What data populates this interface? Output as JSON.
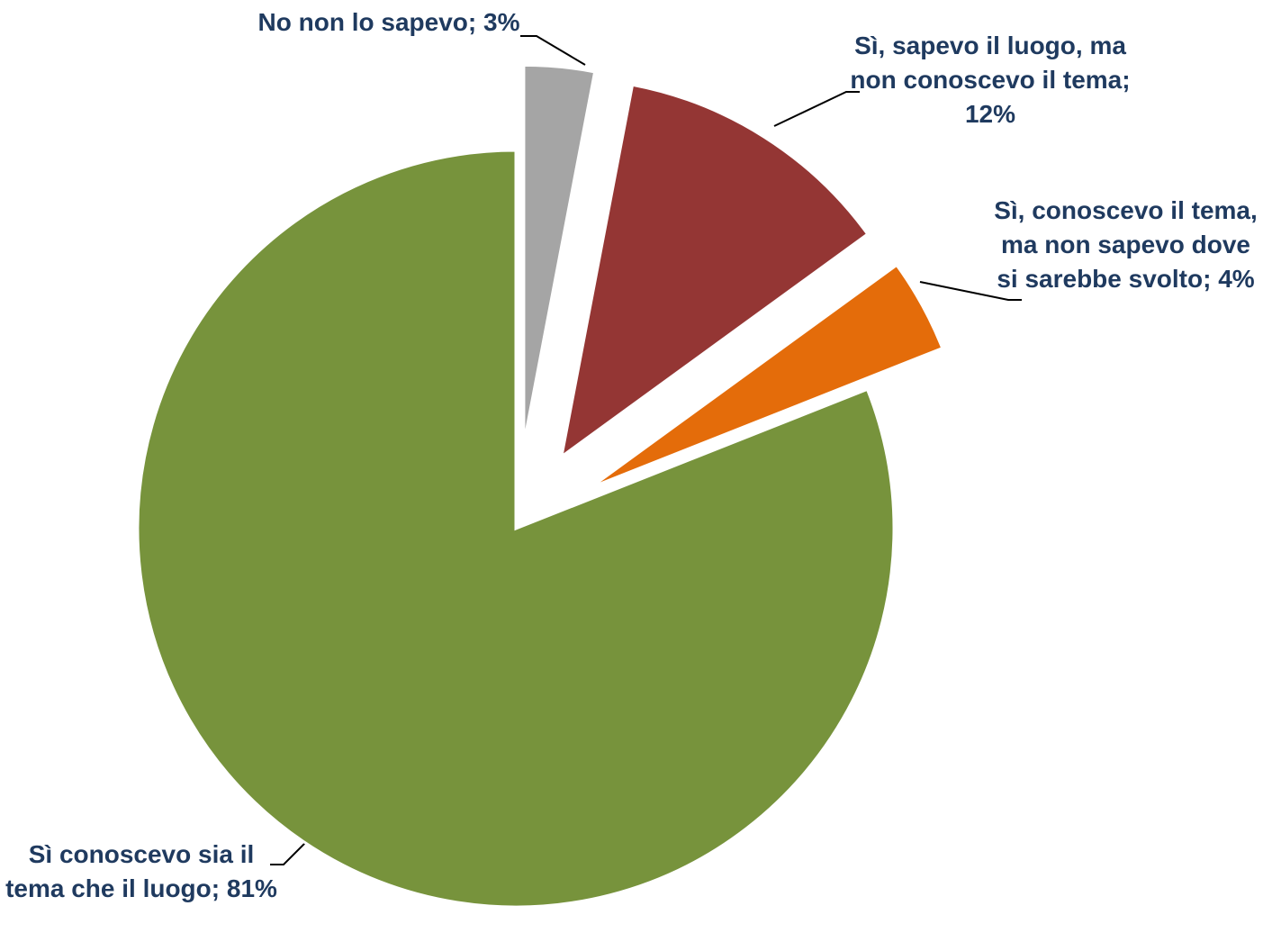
{
  "chart_data": {
    "type": "pie",
    "categories": [
      "No non lo sapevo",
      "Sì, sapevo il luogo, ma non conoscevo il tema",
      "Sì, conoscevo il tema, ma non sapevo dove si sarebbe svolto",
      "Sì conoscevo sia il tema che il luogo"
    ],
    "values": [
      3,
      12,
      4,
      81
    ],
    "value_labels": [
      "3%",
      "12%",
      "4%",
      "81%"
    ],
    "label_separator": "; ",
    "colors": [
      "#a5a5a5",
      "#943634",
      "#e46c0a",
      "#77933c"
    ],
    "exploded": [
      true,
      true,
      true,
      false
    ]
  }
}
